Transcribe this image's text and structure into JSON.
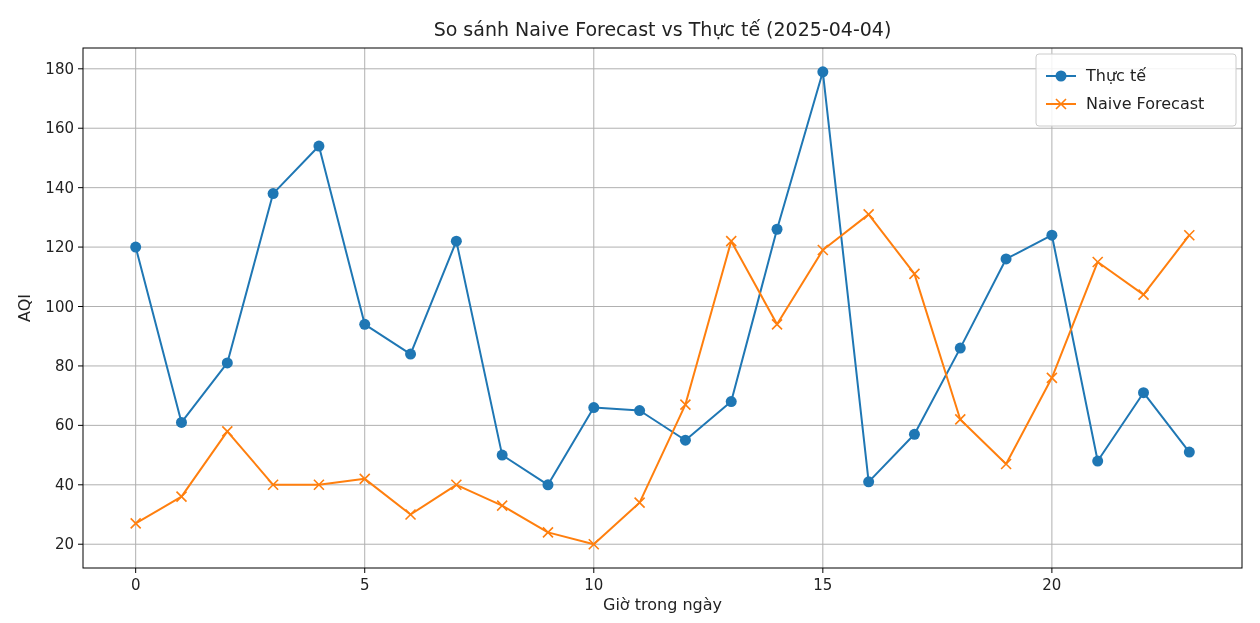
{
  "chart_data": {
    "type": "line",
    "title": "So sánh Naive Forecast vs Thực tế (2025-04-04)",
    "xlabel": "Giờ trong ngày",
    "ylabel": "AQI",
    "x": [
      0,
      1,
      2,
      3,
      4,
      5,
      6,
      7,
      8,
      9,
      10,
      11,
      12,
      13,
      14,
      15,
      16,
      17,
      18,
      19,
      20,
      21,
      22,
      23
    ],
    "series": [
      {
        "name": "Thực tế",
        "color": "#1f77b4",
        "marker": "circle",
        "values": [
          120,
          61,
          81,
          138,
          154,
          94,
          84,
          122,
          50,
          40,
          66,
          65,
          55,
          68,
          126,
          179,
          41,
          57,
          86,
          116,
          124,
          48,
          71,
          51
        ]
      },
      {
        "name": "Naive Forecast",
        "color": "#ff7f0e",
        "marker": "cross",
        "values": [
          27,
          36,
          58,
          40,
          40,
          42,
          30,
          40,
          33,
          24,
          20,
          34,
          67,
          122,
          94,
          119,
          131,
          111,
          62,
          47,
          76,
          115,
          104,
          124
        ]
      }
    ],
    "xlim": [
      -1.15,
      24.15
    ],
    "ylim": [
      12,
      187
    ],
    "xticks": [
      0,
      5,
      10,
      15,
      20
    ],
    "yticks": [
      20,
      40,
      60,
      80,
      100,
      120,
      140,
      160,
      180
    ],
    "grid": true,
    "legend": "top right",
    "line_style": "solid"
  }
}
